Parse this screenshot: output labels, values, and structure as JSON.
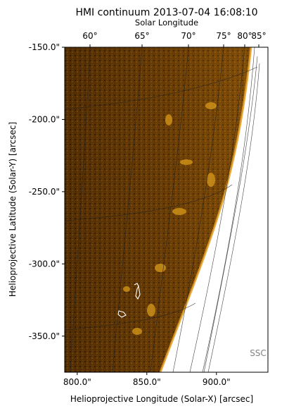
{
  "chart_data": {
    "type": "heatmap",
    "title": "HMI continuum 2013-07-04 16:08:10",
    "top_axis_label": "Solar Longitude",
    "top_ticks": [
      "60°",
      "65°",
      "70°",
      "75°",
      "80°",
      "85°"
    ],
    "xlabel": "Helioprojective Longitude (Solar-X) [arcsec]",
    "ylabel": "Helioprojective Latitude (Solar-Y) [arcsec]",
    "xlim": [
      791,
      937
    ],
    "ylim": [
      -375,
      -150
    ],
    "x_ticks": [
      {
        "value": 800,
        "label": "800.0\""
      },
      {
        "value": 850,
        "label": "850.0\""
      },
      {
        "value": 900,
        "label": "900.0\""
      }
    ],
    "y_ticks": [
      {
        "value": -150,
        "label": "-150.0\""
      },
      {
        "value": -200,
        "label": "-200.0\""
      },
      {
        "value": -250,
        "label": "-250.0\""
      },
      {
        "value": -300,
        "label": "-300.0\""
      },
      {
        "value": -350,
        "label": "-350.0\""
      }
    ],
    "annotation": "SSC",
    "colormap": "hmi continuum (black-orange-yellow)",
    "grid": true
  }
}
